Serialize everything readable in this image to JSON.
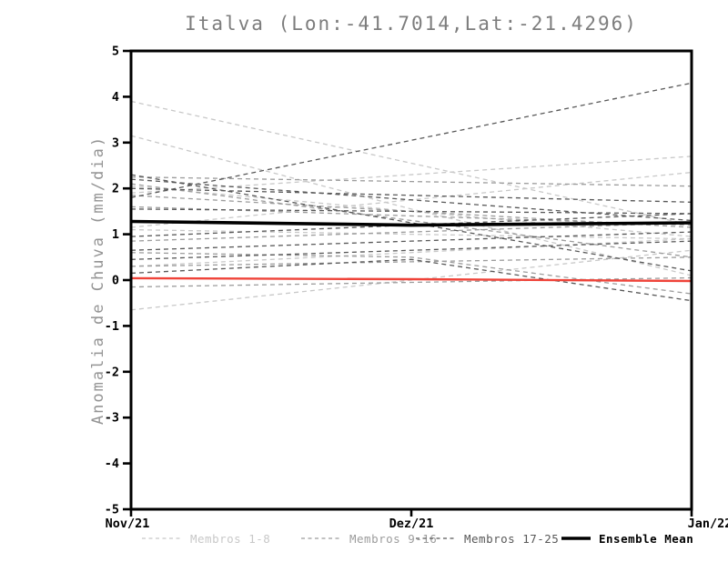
{
  "chart_data": {
    "type": "line",
    "title": "Italva (Lon:-41.7014,Lat:-21.4296)",
    "ylabel": "Anomalia de Chuva (mm/dia)",
    "x": [
      "Nov/21",
      "Dez/21",
      "Jan/22"
    ],
    "ylim": [
      -5,
      5
    ],
    "y_ticks": [
      5,
      4,
      3,
      2,
      1,
      0,
      -1,
      -2,
      -3,
      -4,
      -5
    ],
    "grid": false,
    "legend_position": "bottom",
    "line_style": "dashed",
    "groups": [
      {
        "name": "Membros 1-8",
        "color": "#c8c8c8",
        "members": [
          [
            3.9,
            2.55,
            1.2
          ],
          [
            3.15,
            1.55,
            0.1
          ],
          [
            1.9,
            2.3,
            2.7
          ],
          [
            1.15,
            1.75,
            2.35
          ],
          [
            2.05,
            1.5,
            0.95
          ],
          [
            1.1,
            1.0,
            0.9
          ],
          [
            -0.65,
            0.0,
            0.65
          ],
          [
            0.3,
            0.6,
            0.9
          ]
        ]
      },
      {
        "name": "Membros 9-16",
        "color": "#9c9c9c",
        "members": [
          [
            2.25,
            2.15,
            2.05
          ],
          [
            1.85,
            1.5,
            1.15
          ],
          [
            1.6,
            1.4,
            1.2
          ],
          [
            0.85,
            1.05,
            1.25
          ],
          [
            0.3,
            0.4,
            0.5
          ],
          [
            -0.15,
            -0.05,
            0.05
          ],
          [
            2.1,
            1.3,
            0.5
          ],
          [
            0.6,
            0.5,
            -0.3
          ]
        ]
      },
      {
        "name": "Membros 17-25",
        "color": "#585858",
        "members": [
          [
            1.8,
            3.05,
            4.3
          ],
          [
            2.3,
            1.25,
            0.2
          ],
          [
            2.2,
            1.75,
            1.3
          ],
          [
            2.0,
            1.85,
            1.7
          ],
          [
            1.55,
            1.5,
            1.45
          ],
          [
            0.95,
            1.2,
            1.45
          ],
          [
            0.65,
            0.85,
            1.05
          ],
          [
            0.45,
            0.65,
            0.85
          ],
          [
            0.15,
            0.45,
            -0.45
          ]
        ]
      }
    ],
    "mean": {
      "name": "Ensemble Mean",
      "color": "#000000",
      "values": [
        1.28,
        1.2,
        1.25
      ]
    },
    "zero_line": {
      "color": "#ef4339",
      "values": [
        0.04,
        0.02,
        -0.02
      ]
    }
  }
}
